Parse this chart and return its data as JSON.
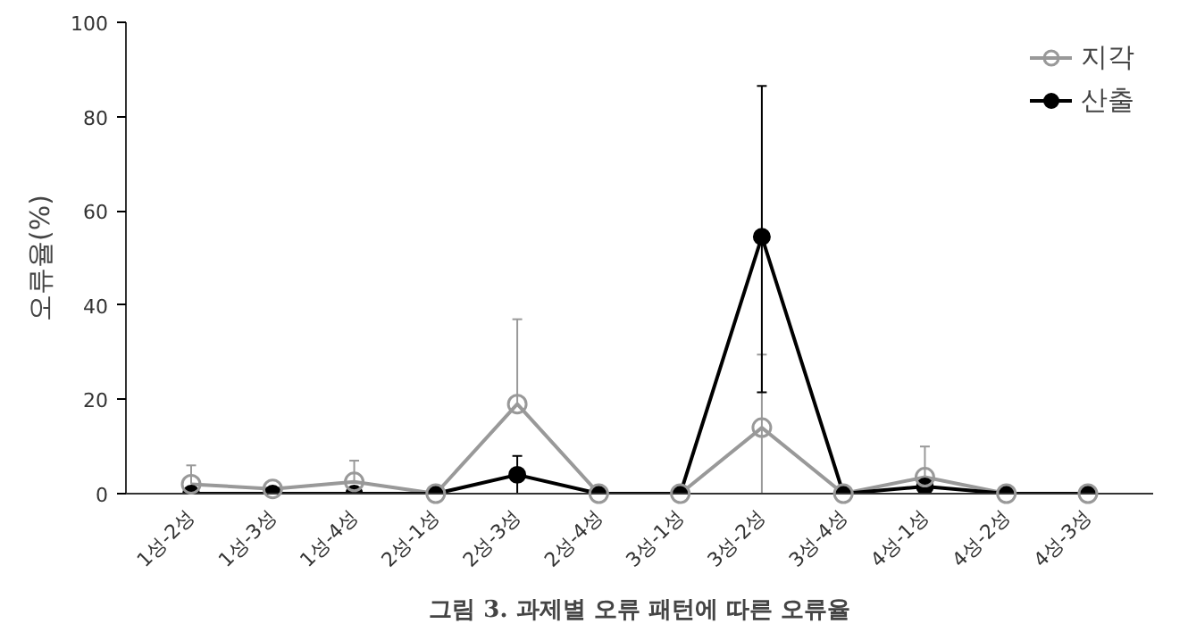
{
  "chart_data": {
    "type": "line",
    "ylabel": "오류율(%)",
    "categories": [
      "1성-2성",
      "1성-3성",
      "1성-4성",
      "2성-1성",
      "2성-3성",
      "2성-4성",
      "3성-1성",
      "3성-2성",
      "3성-4성",
      "4성-1성",
      "4성-2성",
      "4성-3성"
    ],
    "series": [
      {
        "name": "지각",
        "color": "#999999",
        "marker": "circle_open",
        "values": [
          2,
          1,
          2.5,
          0,
          19,
          0,
          0,
          14,
          0,
          3.5,
          0,
          0
        ],
        "errors": [
          [
            2,
            6
          ],
          null,
          [
            2.5,
            7
          ],
          null,
          [
            19,
            37
          ],
          null,
          null,
          [
            0,
            29.5
          ],
          null,
          [
            3.5,
            10
          ],
          null,
          null
        ]
      },
      {
        "name": "산출",
        "color": "#000000",
        "marker": "circle",
        "values": [
          0,
          0,
          0,
          0,
          4,
          0,
          0,
          54.5,
          0,
          1.5,
          0,
          0
        ],
        "errors": [
          null,
          null,
          null,
          null,
          [
            0,
            8
          ],
          null,
          null,
          [
            21.5,
            86.5
          ],
          null,
          null,
          null,
          null
        ]
      }
    ],
    "ylim": [
      0,
      100
    ],
    "yticks": [
      0,
      20,
      40,
      60,
      80,
      100
    ],
    "grid": false,
    "legend": "top right",
    "annotations": [
      "그림 3. 과제별 오류 패턴에 따른 오류율"
    ]
  }
}
